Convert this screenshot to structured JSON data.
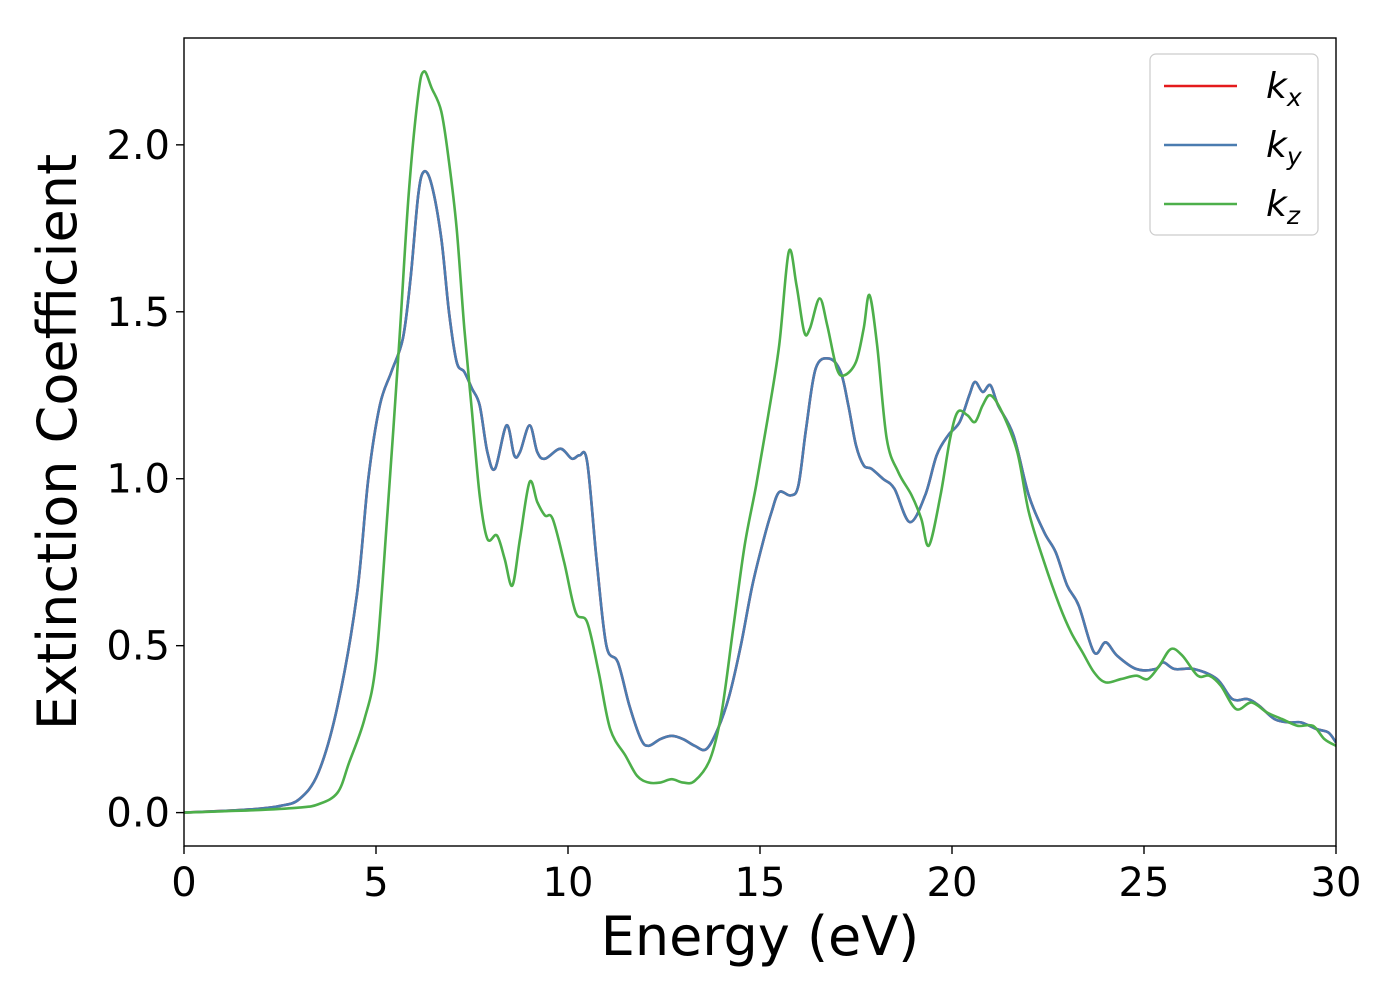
{
  "chart_data": {
    "type": "line",
    "title": "",
    "xlabel": "Energy (eV)",
    "ylabel": "Extinction Coefficient",
    "xlim": [
      0,
      30
    ],
    "ylim": [
      -0.1,
      2.32
    ],
    "xticks": [
      0,
      5,
      10,
      15,
      20,
      25,
      30
    ],
    "xtick_labels": [
      "0",
      "5",
      "10",
      "15",
      "20",
      "25",
      "30"
    ],
    "yticks": [
      0.0,
      0.5,
      1.0,
      1.5,
      2.0
    ],
    "ytick_labels": [
      "0.0",
      "0.5",
      "1.0",
      "1.5",
      "2.0"
    ],
    "grid": false,
    "legend_position": "top-right",
    "series": [
      {
        "name": "k",
        "subscript": "x",
        "color": "#e41a1c",
        "points": [
          [
            0,
            0
          ],
          [
            1,
            0.005
          ],
          [
            2,
            0.012
          ],
          [
            2.5,
            0.02
          ],
          [
            3,
            0.04
          ],
          [
            3.5,
            0.12
          ],
          [
            4,
            0.32
          ],
          [
            4.5,
            0.65
          ],
          [
            4.8,
            1.0
          ],
          [
            5.1,
            1.22
          ],
          [
            5.4,
            1.32
          ],
          [
            5.7,
            1.42
          ],
          [
            5.9,
            1.6
          ],
          [
            6.1,
            1.85
          ],
          [
            6.25,
            1.92
          ],
          [
            6.45,
            1.88
          ],
          [
            6.7,
            1.72
          ],
          [
            6.9,
            1.5
          ],
          [
            7.1,
            1.35
          ],
          [
            7.3,
            1.32
          ],
          [
            7.5,
            1.27
          ],
          [
            7.7,
            1.22
          ],
          [
            7.9,
            1.08
          ],
          [
            8.1,
            1.03
          ],
          [
            8.4,
            1.16
          ],
          [
            8.6,
            1.07
          ],
          [
            8.75,
            1.08
          ],
          [
            9.0,
            1.16
          ],
          [
            9.2,
            1.08
          ],
          [
            9.4,
            1.06
          ],
          [
            9.8,
            1.09
          ],
          [
            10.1,
            1.06
          ],
          [
            10.3,
            1.07
          ],
          [
            10.5,
            1.05
          ],
          [
            10.75,
            0.75
          ],
          [
            11.0,
            0.5
          ],
          [
            11.3,
            0.45
          ],
          [
            11.6,
            0.32
          ],
          [
            11.9,
            0.22
          ],
          [
            12.1,
            0.2
          ],
          [
            12.4,
            0.22
          ],
          [
            12.7,
            0.23
          ],
          [
            13.0,
            0.22
          ],
          [
            13.3,
            0.2
          ],
          [
            13.6,
            0.19
          ],
          [
            13.9,
            0.25
          ],
          [
            14.2,
            0.35
          ],
          [
            14.5,
            0.5
          ],
          [
            14.8,
            0.68
          ],
          [
            15.1,
            0.82
          ],
          [
            15.3,
            0.9
          ],
          [
            15.5,
            0.96
          ],
          [
            15.8,
            0.95
          ],
          [
            16.0,
            0.98
          ],
          [
            16.2,
            1.15
          ],
          [
            16.45,
            1.33
          ],
          [
            16.8,
            1.36
          ],
          [
            17.1,
            1.32
          ],
          [
            17.3,
            1.22
          ],
          [
            17.5,
            1.1
          ],
          [
            17.7,
            1.04
          ],
          [
            17.9,
            1.03
          ],
          [
            18.2,
            1.0
          ],
          [
            18.5,
            0.97
          ],
          [
            18.9,
            0.87
          ],
          [
            19.3,
            0.95
          ],
          [
            19.6,
            1.07
          ],
          [
            19.9,
            1.13
          ],
          [
            20.2,
            1.17
          ],
          [
            20.45,
            1.25
          ],
          [
            20.6,
            1.29
          ],
          [
            20.8,
            1.26
          ],
          [
            21.0,
            1.28
          ],
          [
            21.2,
            1.22
          ],
          [
            21.6,
            1.13
          ],
          [
            22.0,
            0.95
          ],
          [
            22.4,
            0.84
          ],
          [
            22.7,
            0.78
          ],
          [
            23.0,
            0.68
          ],
          [
            23.3,
            0.62
          ],
          [
            23.7,
            0.48
          ],
          [
            24.0,
            0.51
          ],
          [
            24.3,
            0.47
          ],
          [
            24.8,
            0.43
          ],
          [
            25.3,
            0.43
          ],
          [
            25.5,
            0.45
          ],
          [
            25.8,
            0.43
          ],
          [
            26.3,
            0.43
          ],
          [
            26.9,
            0.4
          ],
          [
            27.3,
            0.34
          ],
          [
            27.7,
            0.34
          ],
          [
            28.0,
            0.32
          ],
          [
            28.4,
            0.28
          ],
          [
            28.8,
            0.27
          ],
          [
            29.1,
            0.27
          ],
          [
            29.5,
            0.25
          ],
          [
            29.8,
            0.24
          ],
          [
            30,
            0.21
          ]
        ]
      },
      {
        "name": "k",
        "subscript": "y",
        "color": "#4a7cb0",
        "points": [
          [
            0,
            0
          ],
          [
            1,
            0.005
          ],
          [
            2,
            0.012
          ],
          [
            2.5,
            0.02
          ],
          [
            3,
            0.04
          ],
          [
            3.5,
            0.12
          ],
          [
            4,
            0.32
          ],
          [
            4.5,
            0.65
          ],
          [
            4.8,
            1.0
          ],
          [
            5.1,
            1.22
          ],
          [
            5.4,
            1.32
          ],
          [
            5.7,
            1.42
          ],
          [
            5.9,
            1.6
          ],
          [
            6.1,
            1.85
          ],
          [
            6.25,
            1.92
          ],
          [
            6.45,
            1.88
          ],
          [
            6.7,
            1.72
          ],
          [
            6.9,
            1.5
          ],
          [
            7.1,
            1.35
          ],
          [
            7.3,
            1.32
          ],
          [
            7.5,
            1.27
          ],
          [
            7.7,
            1.22
          ],
          [
            7.9,
            1.08
          ],
          [
            8.1,
            1.03
          ],
          [
            8.4,
            1.16
          ],
          [
            8.6,
            1.07
          ],
          [
            8.75,
            1.08
          ],
          [
            9.0,
            1.16
          ],
          [
            9.2,
            1.08
          ],
          [
            9.4,
            1.06
          ],
          [
            9.8,
            1.09
          ],
          [
            10.1,
            1.06
          ],
          [
            10.3,
            1.07
          ],
          [
            10.5,
            1.05
          ],
          [
            10.75,
            0.75
          ],
          [
            11.0,
            0.5
          ],
          [
            11.3,
            0.45
          ],
          [
            11.6,
            0.32
          ],
          [
            11.9,
            0.22
          ],
          [
            12.1,
            0.2
          ],
          [
            12.4,
            0.22
          ],
          [
            12.7,
            0.23
          ],
          [
            13.0,
            0.22
          ],
          [
            13.3,
            0.2
          ],
          [
            13.6,
            0.19
          ],
          [
            13.9,
            0.25
          ],
          [
            14.2,
            0.35
          ],
          [
            14.5,
            0.5
          ],
          [
            14.8,
            0.68
          ],
          [
            15.1,
            0.82
          ],
          [
            15.3,
            0.9
          ],
          [
            15.5,
            0.96
          ],
          [
            15.8,
            0.95
          ],
          [
            16.0,
            0.98
          ],
          [
            16.2,
            1.15
          ],
          [
            16.45,
            1.33
          ],
          [
            16.8,
            1.36
          ],
          [
            17.1,
            1.32
          ],
          [
            17.3,
            1.22
          ],
          [
            17.5,
            1.1
          ],
          [
            17.7,
            1.04
          ],
          [
            17.9,
            1.03
          ],
          [
            18.2,
            1.0
          ],
          [
            18.5,
            0.97
          ],
          [
            18.9,
            0.87
          ],
          [
            19.3,
            0.95
          ],
          [
            19.6,
            1.07
          ],
          [
            19.9,
            1.13
          ],
          [
            20.2,
            1.17
          ],
          [
            20.45,
            1.25
          ],
          [
            20.6,
            1.29
          ],
          [
            20.8,
            1.26
          ],
          [
            21.0,
            1.28
          ],
          [
            21.2,
            1.22
          ],
          [
            21.6,
            1.13
          ],
          [
            22.0,
            0.95
          ],
          [
            22.4,
            0.84
          ],
          [
            22.7,
            0.78
          ],
          [
            23.0,
            0.68
          ],
          [
            23.3,
            0.62
          ],
          [
            23.7,
            0.48
          ],
          [
            24.0,
            0.51
          ],
          [
            24.3,
            0.47
          ],
          [
            24.8,
            0.43
          ],
          [
            25.3,
            0.43
          ],
          [
            25.5,
            0.45
          ],
          [
            25.8,
            0.43
          ],
          [
            26.3,
            0.43
          ],
          [
            26.9,
            0.4
          ],
          [
            27.3,
            0.34
          ],
          [
            27.7,
            0.34
          ],
          [
            28.0,
            0.32
          ],
          [
            28.4,
            0.28
          ],
          [
            28.8,
            0.27
          ],
          [
            29.1,
            0.27
          ],
          [
            29.5,
            0.25
          ],
          [
            29.8,
            0.24
          ],
          [
            30,
            0.21
          ]
        ]
      },
      {
        "name": "k",
        "subscript": "z",
        "color": "#4daf4a",
        "points": [
          [
            0,
            0
          ],
          [
            1,
            0.004
          ],
          [
            2,
            0.008
          ],
          [
            3,
            0.015
          ],
          [
            3.5,
            0.025
          ],
          [
            4,
            0.06
          ],
          [
            4.3,
            0.15
          ],
          [
            4.7,
            0.28
          ],
          [
            5.0,
            0.45
          ],
          [
            5.3,
            0.9
          ],
          [
            5.6,
            1.4
          ],
          [
            5.85,
            1.85
          ],
          [
            6.1,
            2.15
          ],
          [
            6.25,
            2.22
          ],
          [
            6.45,
            2.17
          ],
          [
            6.7,
            2.1
          ],
          [
            6.9,
            1.95
          ],
          [
            7.1,
            1.75
          ],
          [
            7.3,
            1.45
          ],
          [
            7.5,
            1.2
          ],
          [
            7.7,
            0.95
          ],
          [
            7.9,
            0.82
          ],
          [
            8.15,
            0.83
          ],
          [
            8.35,
            0.76
          ],
          [
            8.55,
            0.68
          ],
          [
            8.75,
            0.82
          ],
          [
            9.0,
            0.99
          ],
          [
            9.2,
            0.93
          ],
          [
            9.4,
            0.89
          ],
          [
            9.6,
            0.88
          ],
          [
            9.9,
            0.75
          ],
          [
            10.2,
            0.6
          ],
          [
            10.5,
            0.57
          ],
          [
            10.8,
            0.42
          ],
          [
            11.1,
            0.25
          ],
          [
            11.5,
            0.17
          ],
          [
            11.8,
            0.11
          ],
          [
            12.1,
            0.09
          ],
          [
            12.4,
            0.09
          ],
          [
            12.7,
            0.1
          ],
          [
            13.0,
            0.09
          ],
          [
            13.3,
            0.095
          ],
          [
            13.7,
            0.16
          ],
          [
            14.0,
            0.3
          ],
          [
            14.3,
            0.55
          ],
          [
            14.6,
            0.8
          ],
          [
            14.9,
            0.98
          ],
          [
            15.2,
            1.18
          ],
          [
            15.5,
            1.4
          ],
          [
            15.75,
            1.68
          ],
          [
            15.95,
            1.58
          ],
          [
            16.15,
            1.44
          ],
          [
            16.3,
            1.45
          ],
          [
            16.55,
            1.54
          ],
          [
            16.75,
            1.46
          ],
          [
            17.0,
            1.33
          ],
          [
            17.2,
            1.31
          ],
          [
            17.5,
            1.35
          ],
          [
            17.7,
            1.45
          ],
          [
            17.85,
            1.55
          ],
          [
            18.05,
            1.4
          ],
          [
            18.3,
            1.12
          ],
          [
            18.6,
            1.02
          ],
          [
            18.95,
            0.95
          ],
          [
            19.2,
            0.88
          ],
          [
            19.4,
            0.8
          ],
          [
            19.7,
            0.95
          ],
          [
            19.95,
            1.12
          ],
          [
            20.15,
            1.2
          ],
          [
            20.4,
            1.19
          ],
          [
            20.6,
            1.17
          ],
          [
            20.8,
            1.22
          ],
          [
            21.0,
            1.25
          ],
          [
            21.3,
            1.2
          ],
          [
            21.7,
            1.08
          ],
          [
            22.0,
            0.9
          ],
          [
            22.4,
            0.75
          ],
          [
            22.8,
            0.62
          ],
          [
            23.1,
            0.54
          ],
          [
            23.4,
            0.48
          ],
          [
            23.7,
            0.42
          ],
          [
            24.0,
            0.39
          ],
          [
            24.4,
            0.4
          ],
          [
            24.8,
            0.41
          ],
          [
            25.1,
            0.4
          ],
          [
            25.4,
            0.44
          ],
          [
            25.7,
            0.49
          ],
          [
            26.0,
            0.47
          ],
          [
            26.4,
            0.41
          ],
          [
            26.7,
            0.41
          ],
          [
            27.0,
            0.38
          ],
          [
            27.4,
            0.31
          ],
          [
            27.8,
            0.33
          ],
          [
            28.2,
            0.3
          ],
          [
            28.6,
            0.28
          ],
          [
            29.0,
            0.26
          ],
          [
            29.4,
            0.26
          ],
          [
            29.7,
            0.22
          ],
          [
            30,
            0.2
          ]
        ]
      }
    ]
  }
}
